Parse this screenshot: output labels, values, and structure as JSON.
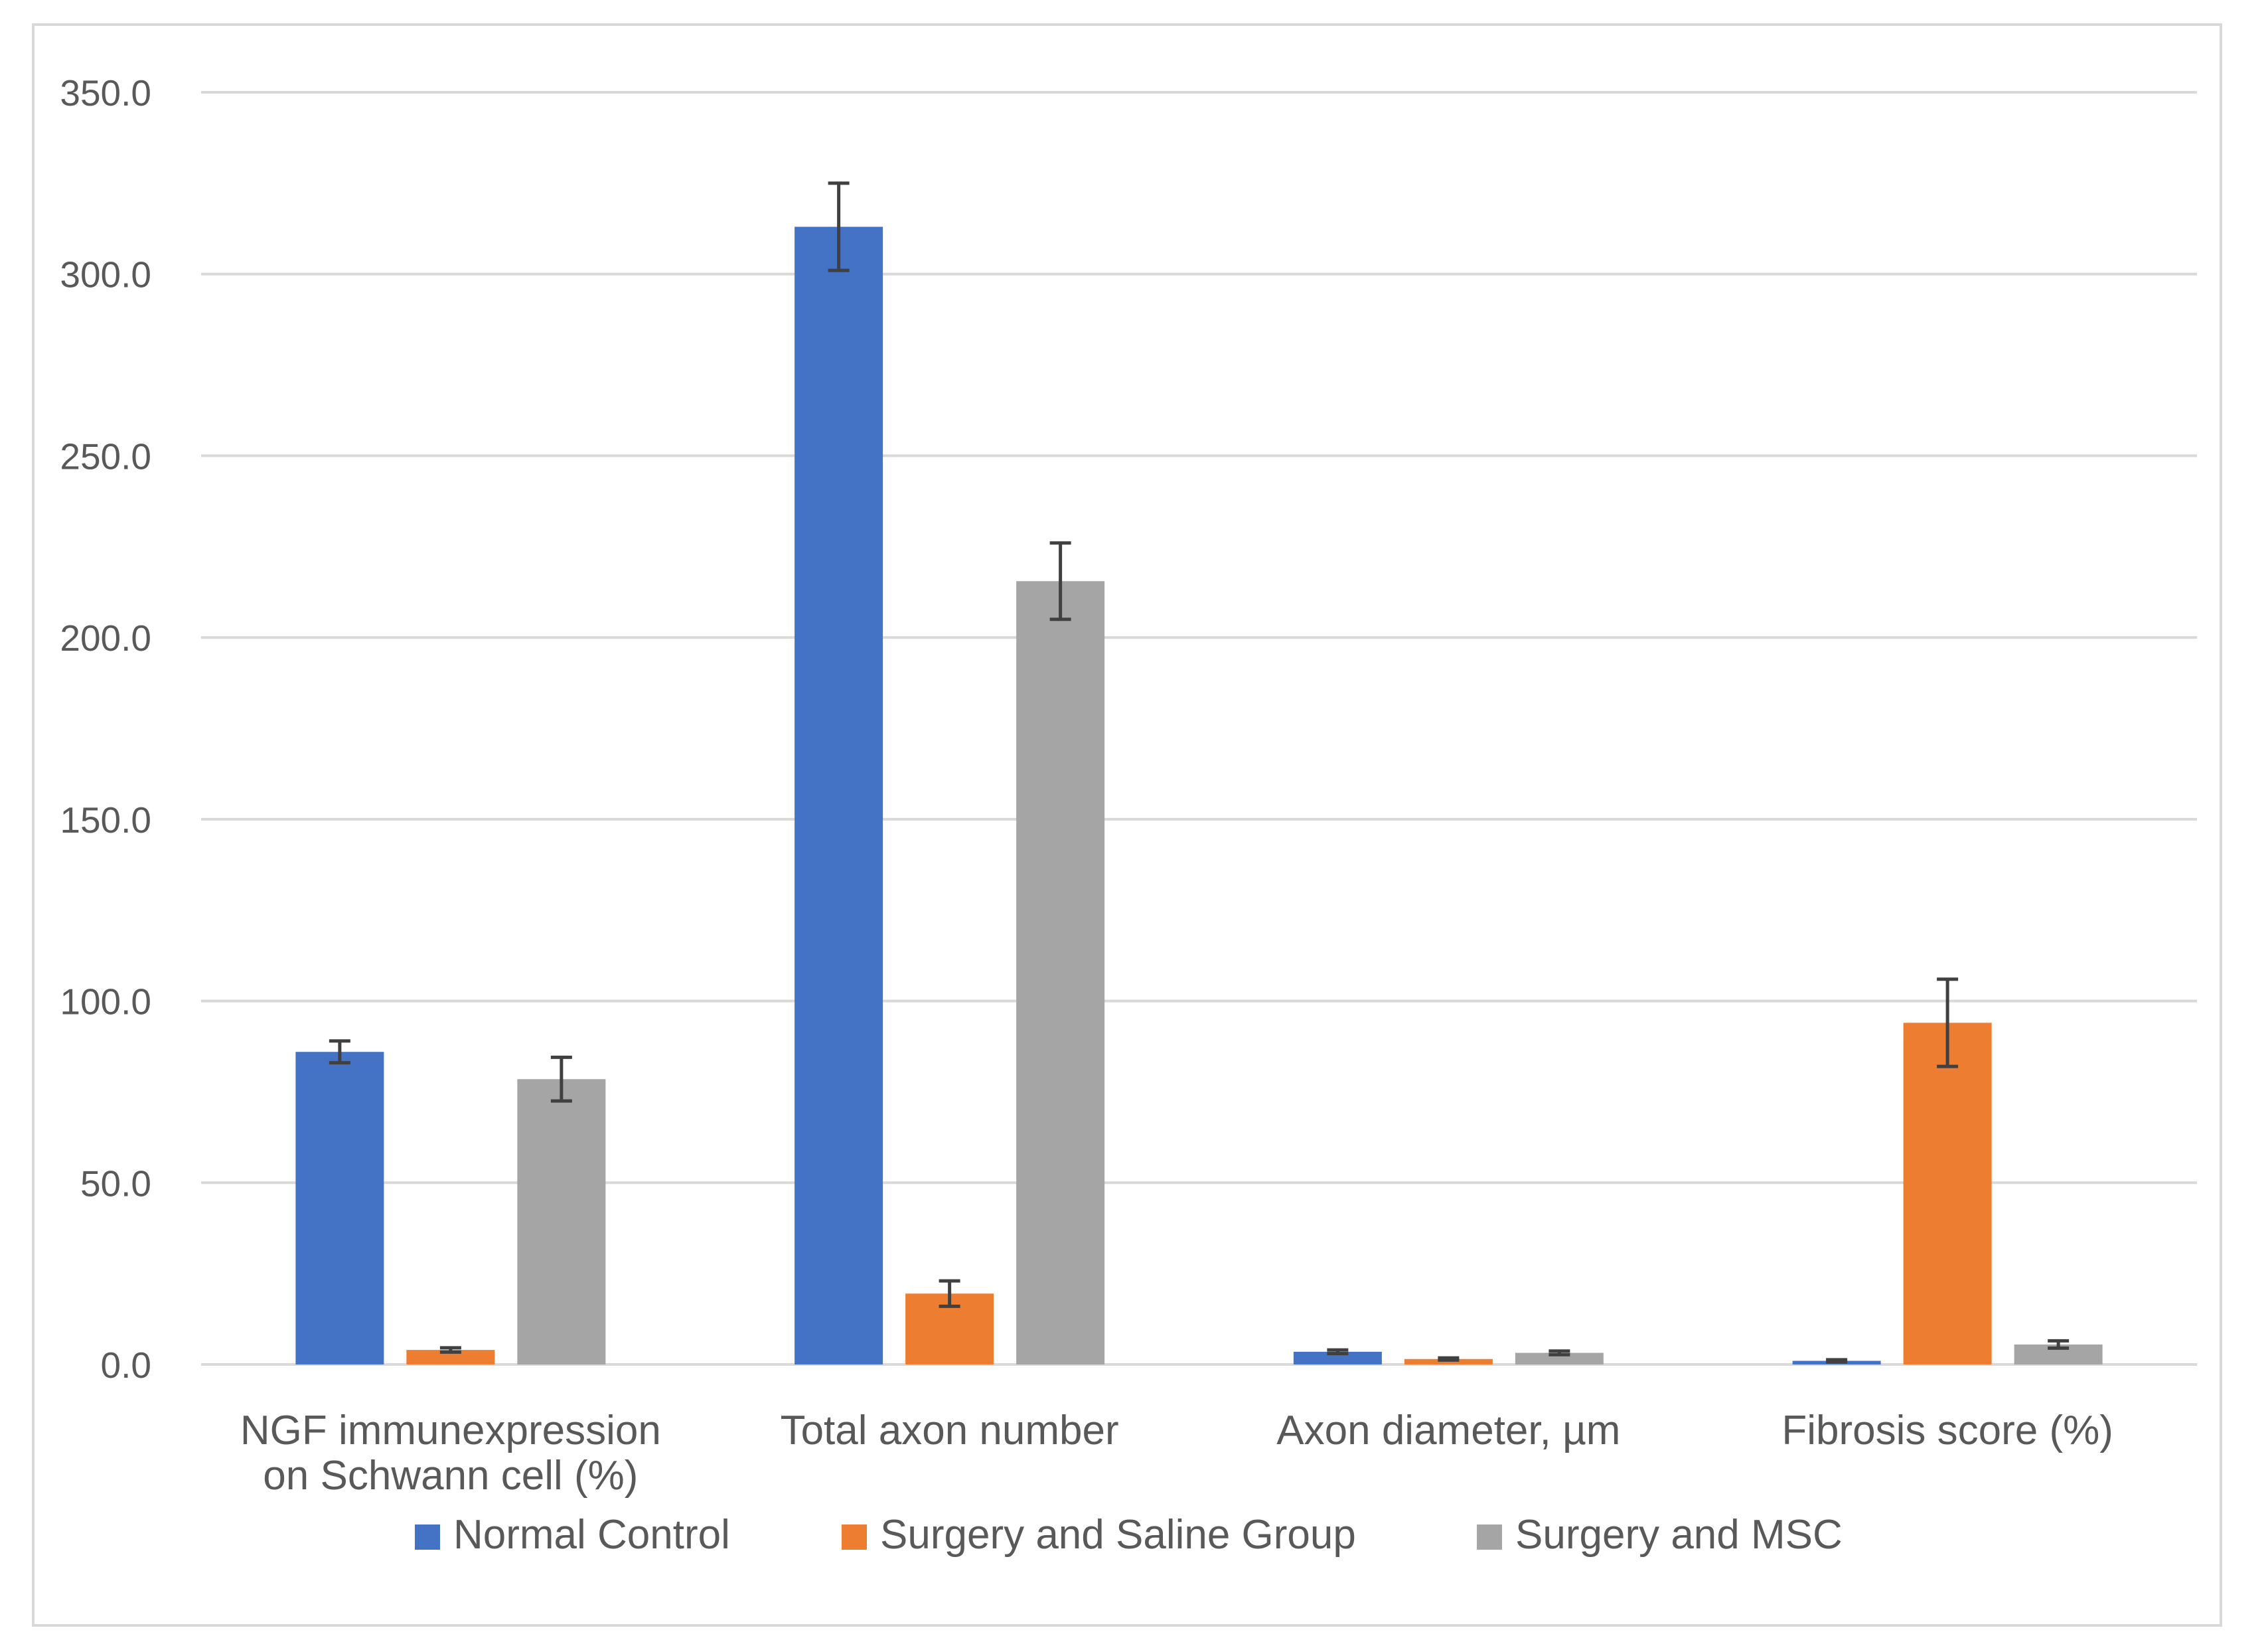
{
  "chart_data": {
    "type": "bar",
    "title": "",
    "xlabel": "",
    "ylabel": "",
    "ylim": [
      0,
      350
    ],
    "ytick_step": 50,
    "ytick_labels": [
      "0.0",
      "50.0",
      "100.0",
      "150.0",
      "200.0",
      "250.0",
      "300.0",
      "350.0"
    ],
    "grid": true,
    "legend_position": "bottom",
    "categories": [
      [
        "NGF immunexpression",
        "on Schwann cell (%)"
      ],
      [
        "Total axon number"
      ],
      [
        "Axon diameter, µm"
      ],
      [
        "Fibrosis score (%)"
      ]
    ],
    "series": [
      {
        "name": "Normal Control",
        "color": "#4472c4",
        "values": [
          86.0,
          313.0,
          3.5,
          1.0
        ],
        "errors": [
          3.0,
          12.0,
          0.5,
          0.3
        ]
      },
      {
        "name": "Surgery and Saline Group",
        "color": "#ed7d31",
        "values": [
          4.0,
          19.5,
          1.5,
          94.0
        ],
        "errors": [
          0.6,
          3.5,
          0.3,
          12.0
        ]
      },
      {
        "name": "Surgery and MSC",
        "color": "#a5a5a5",
        "values": [
          78.5,
          215.5,
          3.2,
          5.5
        ],
        "errors": [
          6.0,
          10.5,
          0.5,
          1.0
        ]
      }
    ],
    "gridline_color": "#d9d9d9",
    "errorbar_color": "#404040"
  }
}
